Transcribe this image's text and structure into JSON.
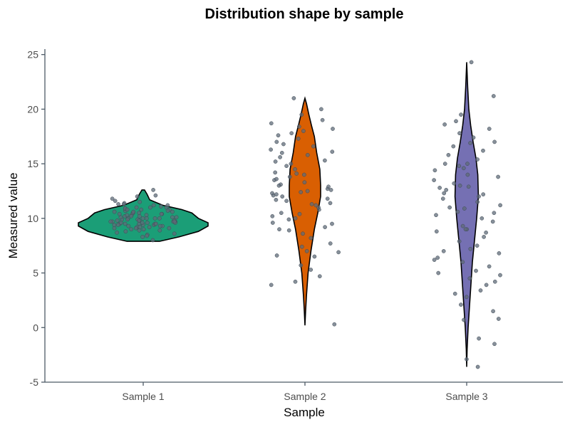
{
  "chart_data": {
    "type": "violin",
    "title": "Distribution shape by sample",
    "xlabel": "Sample",
    "ylabel": "Measured value",
    "categories": [
      "Sample 1",
      "Sample 2",
      "Sample 3"
    ],
    "ylim": [
      -5,
      25.5
    ],
    "yticks": [
      -5,
      0,
      5,
      10,
      15,
      20,
      25
    ],
    "grid": false,
    "legend": "none",
    "series": [
      {
        "category": "Sample 1",
        "color": "#1b9e77",
        "range": [
          7.9,
          12.6
        ],
        "density": [
          [
            7.9,
            0.25
          ],
          [
            8.3,
            0.55
          ],
          [
            8.8,
            0.85
          ],
          [
            9.3,
            1.0
          ],
          [
            9.6,
            1.0
          ],
          [
            10.0,
            0.85
          ],
          [
            10.5,
            0.75
          ],
          [
            10.8,
            0.6
          ],
          [
            11.2,
            0.3
          ],
          [
            11.7,
            0.1
          ],
          [
            12.2,
            0.06
          ],
          [
            12.6,
            0.02
          ]
        ],
        "points": [
          8.3,
          8.5,
          8.7,
          8.8,
          8.9,
          9.0,
          9.1,
          9.1,
          9.2,
          9.2,
          9.3,
          9.3,
          9.4,
          9.4,
          9.4,
          9.5,
          9.5,
          9.5,
          9.6,
          9.6,
          9.6,
          9.7,
          9.7,
          9.7,
          9.8,
          9.8,
          9.8,
          9.9,
          9.9,
          10.0,
          10.0,
          10.0,
          10.1,
          10.1,
          10.2,
          10.2,
          10.3,
          10.3,
          10.4,
          10.4,
          10.5,
          10.5,
          10.6,
          10.6,
          10.7,
          10.8,
          10.8,
          10.9,
          11.0,
          11.0,
          11.1,
          11.2,
          11.3,
          11.4,
          11.5,
          11.6,
          11.8,
          12.0,
          12.1,
          12.6,
          8.6,
          9.0,
          9.5,
          10.0,
          10.5,
          11.0,
          9.2,
          9.8,
          10.3,
          10.9,
          8.9,
          9.4,
          9.9,
          10.4,
          11.2,
          9.6,
          10.1,
          10.7,
          9.3,
          8.0,
          8.4,
          9.7,
          10.2,
          10.6,
          11.3,
          9.1,
          9.5,
          10.0,
          10.8,
          9.7
        ]
      },
      {
        "category": "Sample 2",
        "color": "#d95f02",
        "range": [
          0.2,
          21.0
        ],
        "density": [
          [
            0.2,
            0.0
          ],
          [
            1.5,
            0.04
          ],
          [
            3.0,
            0.1
          ],
          [
            5.0,
            0.2
          ],
          [
            7.0,
            0.38
          ],
          [
            9.0,
            0.6
          ],
          [
            10.5,
            0.82
          ],
          [
            12.0,
            1.0
          ],
          [
            13.0,
            1.0
          ],
          [
            14.5,
            0.95
          ],
          [
            16.0,
            0.75
          ],
          [
            17.5,
            0.6
          ],
          [
            18.5,
            0.42
          ],
          [
            19.5,
            0.25
          ],
          [
            20.5,
            0.1
          ],
          [
            21.0,
            0.0
          ]
        ],
        "points": [
          3.9,
          4.2,
          5.3,
          5.7,
          6.6,
          6.9,
          7.4,
          7.7,
          8.2,
          8.6,
          9.0,
          9.2,
          9.5,
          9.9,
          10.2,
          10.5,
          10.8,
          11.0,
          11.2,
          11.4,
          11.6,
          11.8,
          12.0,
          12.1,
          12.2,
          12.3,
          12.5,
          12.7,
          12.9,
          13.1,
          13.3,
          13.5,
          13.8,
          14.0,
          14.2,
          14.5,
          14.8,
          15.0,
          15.3,
          15.6,
          16.0,
          16.3,
          16.6,
          17.0,
          17.3,
          17.6,
          18.0,
          18.4,
          18.7,
          19.0,
          19.5,
          20.0,
          21.0,
          0.3,
          4.7,
          6.5,
          8.9,
          10.0,
          11.7,
          12.6,
          13.6,
          15.2,
          16.8,
          17.8,
          9.6,
          11.3,
          12.4,
          14.1,
          15.8,
          18.2,
          7.0,
          10.4,
          13.0,
          16.1
        ]
      },
      {
        "category": "Sample 3",
        "color": "#7570b3",
        "range": [
          -3.6,
          24.3
        ],
        "density": [
          [
            -3.6,
            0.0
          ],
          [
            -2.0,
            0.03
          ],
          [
            0.0,
            0.1
          ],
          [
            2.0,
            0.2
          ],
          [
            4.0,
            0.3
          ],
          [
            6.0,
            0.4
          ],
          [
            8.0,
            0.55
          ],
          [
            10.0,
            0.7
          ],
          [
            12.0,
            0.82
          ],
          [
            14.0,
            0.78
          ],
          [
            15.5,
            0.65
          ],
          [
            17.0,
            0.45
          ],
          [
            18.5,
            0.28
          ],
          [
            20.0,
            0.15
          ],
          [
            22.0,
            0.07
          ],
          [
            24.3,
            0.0
          ]
        ],
        "points": [
          -3.6,
          -2.9,
          -1.5,
          -1.0,
          0.7,
          0.8,
          1.5,
          2.1,
          2.8,
          3.4,
          3.9,
          4.2,
          4.5,
          4.8,
          5.2,
          5.6,
          6.0,
          6.4,
          6.8,
          7.2,
          7.5,
          7.9,
          8.3,
          8.7,
          9.0,
          9.3,
          9.7,
          10.0,
          10.3,
          10.6,
          10.9,
          11.2,
          11.5,
          11.8,
          12.0,
          12.3,
          12.6,
          12.9,
          13.2,
          13.5,
          13.8,
          14.0,
          14.4,
          14.8,
          15.0,
          15.4,
          15.8,
          16.2,
          16.6,
          17.0,
          17.4,
          17.8,
          18.2,
          18.6,
          18.9,
          19.5,
          21.2,
          24.3,
          5.0,
          7.0,
          9.0,
          11.0,
          13.0,
          15.0,
          3.1,
          6.2,
          8.8,
          12.2,
          14.6,
          16.9,
          10.5,
          12.8
        ]
      }
    ]
  }
}
